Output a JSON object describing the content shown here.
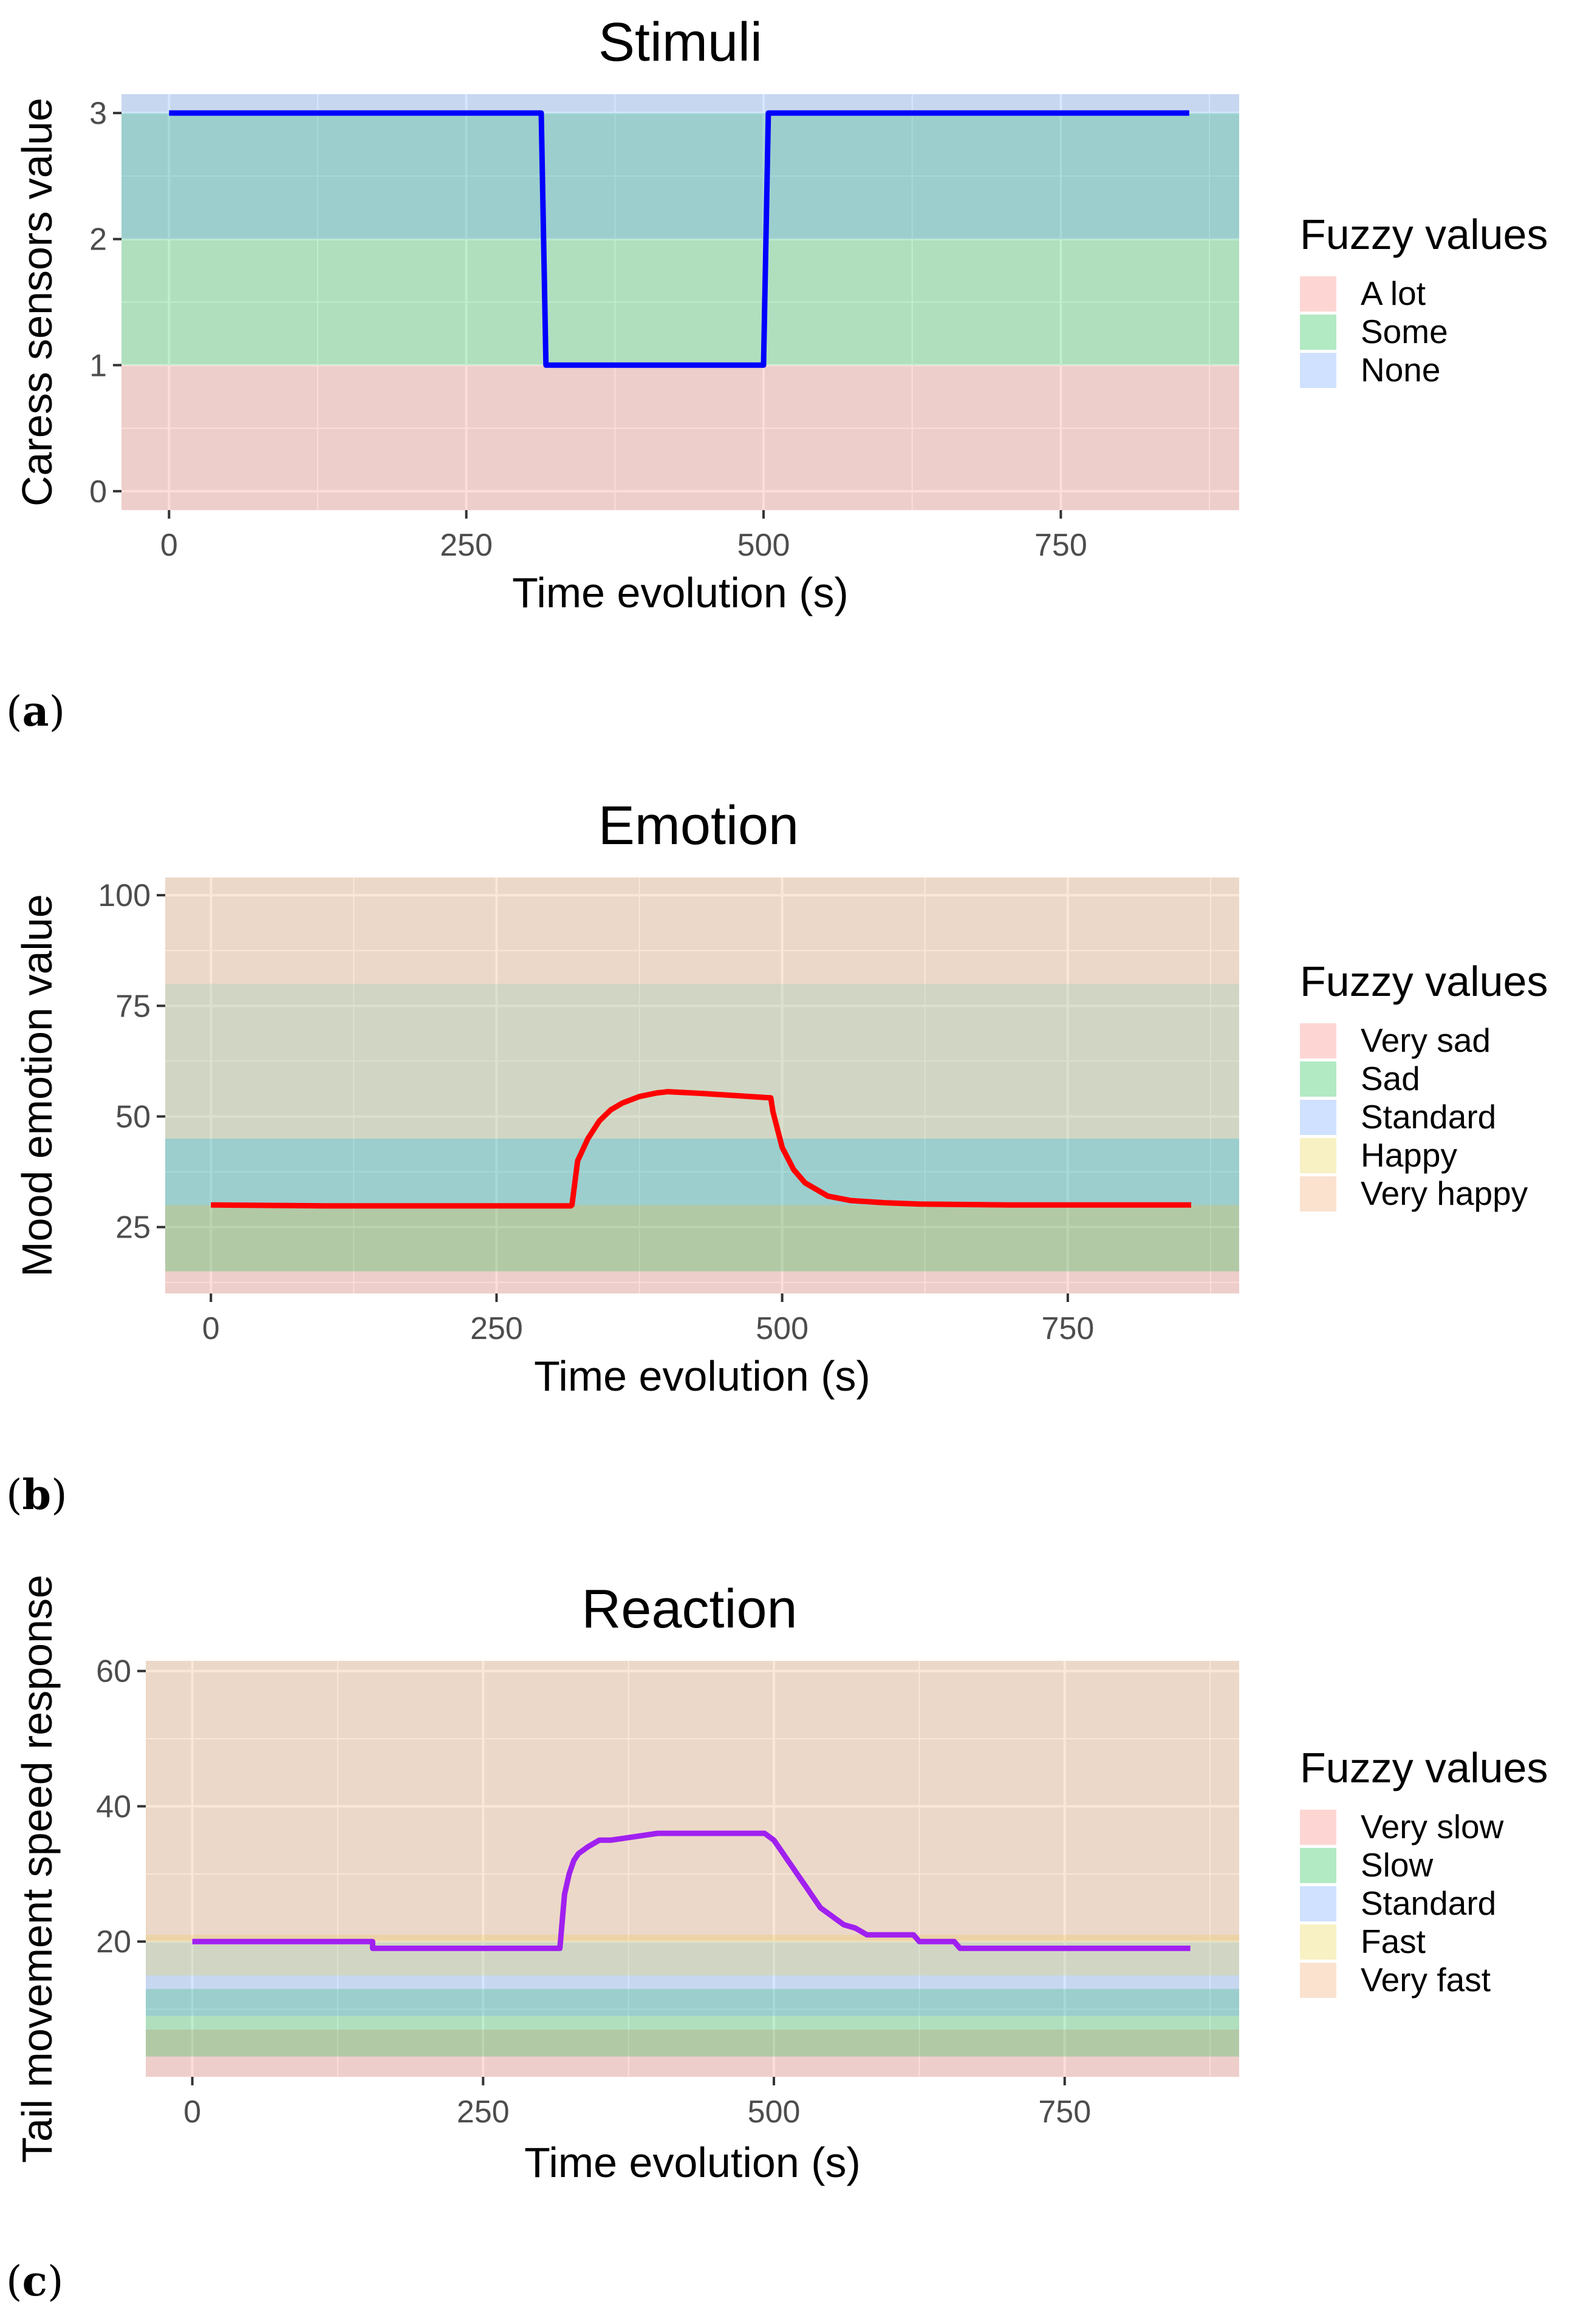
{
  "colors": {
    "band_a_lot": "#f8766d",
    "band_some": "#00ba38",
    "band_none": "#619cff",
    "band_very_sad": "#f8766d",
    "band_sad": "#00ba38",
    "band_standard": "#619cff",
    "band_happy": "#e8d23a",
    "band_very_happy": "#f0a060",
    "panel_bg": "#ebebeb",
    "grid": "#ffffff",
    "line_stimuli": "#0000ff",
    "line_emotion": "#ff0000",
    "line_reaction": "#a020f0"
  },
  "panels": {
    "a": {
      "label": "a"
    },
    "b": {
      "label": "b"
    },
    "c": {
      "label": "c"
    }
  },
  "chart_data": [
    {
      "type": "line",
      "title": "Stimuli",
      "xlabel": "Time evolution (s)",
      "ylabel": "Caress sensors value",
      "xlim": [
        -40,
        900
      ],
      "ylim": [
        -0.15,
        3.15
      ],
      "x_ticks": [
        0,
        250,
        500,
        750
      ],
      "x_tick_labels": [
        "0",
        "250",
        "500",
        "750"
      ],
      "y_ticks": [
        0,
        1,
        2,
        3
      ],
      "y_tick_labels": [
        "0",
        "1",
        "2",
        "3"
      ],
      "legend_title": "Fuzzy values",
      "legend": [
        {
          "label": "A lot",
          "color_key": "band_a_lot"
        },
        {
          "label": "Some",
          "color_key": "band_some"
        },
        {
          "label": "None",
          "color_key": "band_none"
        }
      ],
      "bands": [
        {
          "name": "A lot",
          "color_key": "band_a_lot",
          "ymin": -0.15,
          "ymax": 1
        },
        {
          "name": "Some",
          "color_key": "band_some",
          "ymin": 1,
          "ymax": 3
        },
        {
          "name": "None",
          "color_key": "band_none",
          "ymin": 2,
          "ymax": 3.15
        }
      ],
      "series": [
        {
          "name": "Stimuli",
          "color_key": "line_stimuli",
          "x": [
            0,
            313,
            317,
            500,
            504,
            858
          ],
          "y": [
            3,
            3,
            1,
            1,
            3,
            3
          ]
        }
      ]
    },
    {
      "type": "line",
      "title": "Emotion",
      "xlabel": "Time evolution (s)",
      "ylabel": "Mood emotion value",
      "xlim": [
        -40,
        900
      ],
      "ylim": [
        10,
        104
      ],
      "x_ticks": [
        0,
        250,
        500,
        750
      ],
      "x_tick_labels": [
        "0",
        "250",
        "500",
        "750"
      ],
      "y_ticks": [
        25,
        50,
        75,
        100
      ],
      "y_tick_labels": [
        "25",
        "50",
        "75",
        "100"
      ],
      "legend_title": "Fuzzy values",
      "legend": [
        {
          "label": "Very sad",
          "color_key": "band_very_sad"
        },
        {
          "label": "Sad",
          "color_key": "band_sad"
        },
        {
          "label": "Standard",
          "color_key": "band_standard"
        },
        {
          "label": "Happy",
          "color_key": "band_happy"
        },
        {
          "label": "Very happy",
          "color_key": "band_very_happy"
        }
      ],
      "bands": [
        {
          "name": "Very sad",
          "color_key": "band_very_sad",
          "ymin": 10,
          "ymax": 30
        },
        {
          "name": "Sad",
          "color_key": "band_sad",
          "ymin": 15,
          "ymax": 45
        },
        {
          "name": "Standard",
          "color_key": "band_standard",
          "ymin": 30,
          "ymax": 80
        },
        {
          "name": "Happy",
          "color_key": "band_happy",
          "ymin": 45,
          "ymax": 80
        },
        {
          "name": "Very happy",
          "color_key": "band_very_happy",
          "ymin": 80,
          "ymax": 104
        }
      ],
      "series": [
        {
          "name": "Emotion",
          "color_key": "line_emotion",
          "x": [
            0,
            100,
            315,
            316,
            321,
            330,
            340,
            350,
            360,
            375,
            390,
            400,
            430,
            460,
            490,
            492,
            500,
            510,
            520,
            540,
            560,
            590,
            620,
            700,
            858
          ],
          "y": [
            30,
            29.8,
            29.8,
            30,
            40,
            45,
            49,
            51.5,
            53,
            54.5,
            55.3,
            55.6,
            55.2,
            54.7,
            54.2,
            51,
            43,
            38,
            35,
            32,
            31,
            30.5,
            30.2,
            30,
            30
          ]
        }
      ]
    },
    {
      "type": "line",
      "title": "Reaction",
      "xlabel": "Time evolution (s)",
      "ylabel": "Tail movement speed response",
      "xlim": [
        -40,
        900
      ],
      "ylim": [
        0,
        61.5
      ],
      "x_ticks": [
        0,
        250,
        500,
        750
      ],
      "x_tick_labels": [
        "0",
        "250",
        "500",
        "750"
      ],
      "y_ticks": [
        20,
        40,
        60
      ],
      "y_tick_labels": [
        "20",
        "40",
        "60"
      ],
      "legend_title": "Fuzzy values",
      "legend": [
        {
          "label": "Very slow",
          "color_key": "band_very_slow"
        },
        {
          "label": "Slow",
          "color_key": "band_slow"
        },
        {
          "label": "Standard",
          "color_key": "band_standard"
        },
        {
          "label": "Fast",
          "color_key": "band_fast"
        },
        {
          "label": "Very fast",
          "color_key": "band_very_fast"
        }
      ],
      "bands": [
        {
          "name": "Very slow",
          "color_key": "band_very_slow",
          "ymin": 0,
          "ymax": 7
        },
        {
          "name": "Slow",
          "color_key": "band_slow",
          "ymin": 3,
          "ymax": 13
        },
        {
          "name": "Standard",
          "color_key": "band_standard",
          "ymin": 9,
          "ymax": 20
        },
        {
          "name": "Fast",
          "color_key": "band_fast",
          "ymin": 15,
          "ymax": 21
        },
        {
          "name": "Very fast",
          "color_key": "band_very_fast",
          "ymin": 20,
          "ymax": 61.5
        }
      ],
      "series": [
        {
          "name": "Reaction",
          "color_key": "line_reaction",
          "x": [
            0,
            155,
            155,
            316,
            320,
            324,
            328,
            332,
            336,
            340,
            350,
            360,
            400,
            492,
            496,
            500,
            504,
            508,
            512,
            516,
            520,
            524,
            528,
            532,
            536,
            540,
            544,
            548,
            552,
            556,
            560,
            570,
            580,
            620,
            625,
            655,
            660,
            858
          ],
          "y": [
            20,
            20,
            19,
            19,
            27,
            30,
            32,
            33,
            33.5,
            34,
            35,
            35,
            36,
            36,
            35.5,
            35,
            34,
            33,
            32,
            31,
            30,
            29,
            28,
            27,
            26,
            25,
            24.5,
            24,
            23.5,
            23,
            22.5,
            22,
            21,
            21,
            20,
            20,
            19,
            19
          ]
        }
      ]
    }
  ]
}
